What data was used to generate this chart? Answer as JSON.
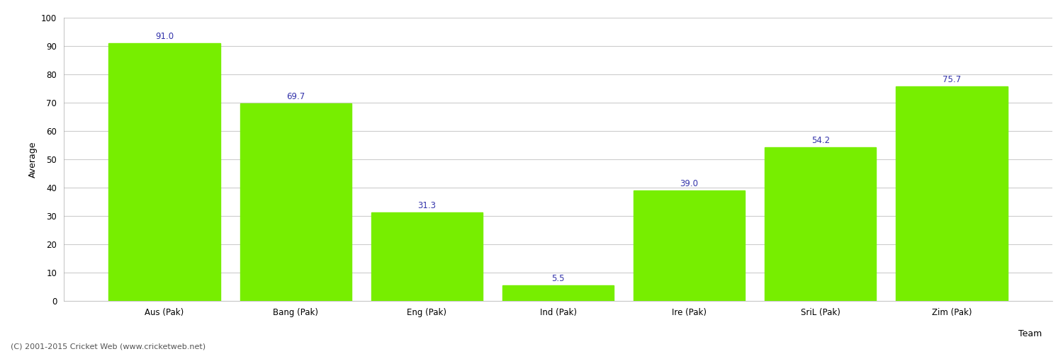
{
  "categories": [
    "Aus (Pak)",
    "Bang (Pak)",
    "Eng (Pak)",
    "Ind (Pak)",
    "Ire (Pak)",
    "SriL (Pak)",
    "Zim (Pak)"
  ],
  "values": [
    91.0,
    69.7,
    31.3,
    5.5,
    39.0,
    54.2,
    75.7
  ],
  "bar_color": "#77ee00",
  "label_color": "#3333aa",
  "xlabel": "Team",
  "ylabel": "Average",
  "ylim": [
    0,
    100
  ],
  "yticks": [
    0,
    10,
    20,
    30,
    40,
    50,
    60,
    70,
    80,
    90,
    100
  ],
  "grid_color": "#cccccc",
  "background_color": "#ffffff",
  "footer": "(C) 2001-2015 Cricket Web (www.cricketweb.net)",
  "bar_width": 0.85,
  "label_fontsize": 8.5,
  "axis_label_fontsize": 9,
  "tick_fontsize": 8.5,
  "footer_fontsize": 8
}
